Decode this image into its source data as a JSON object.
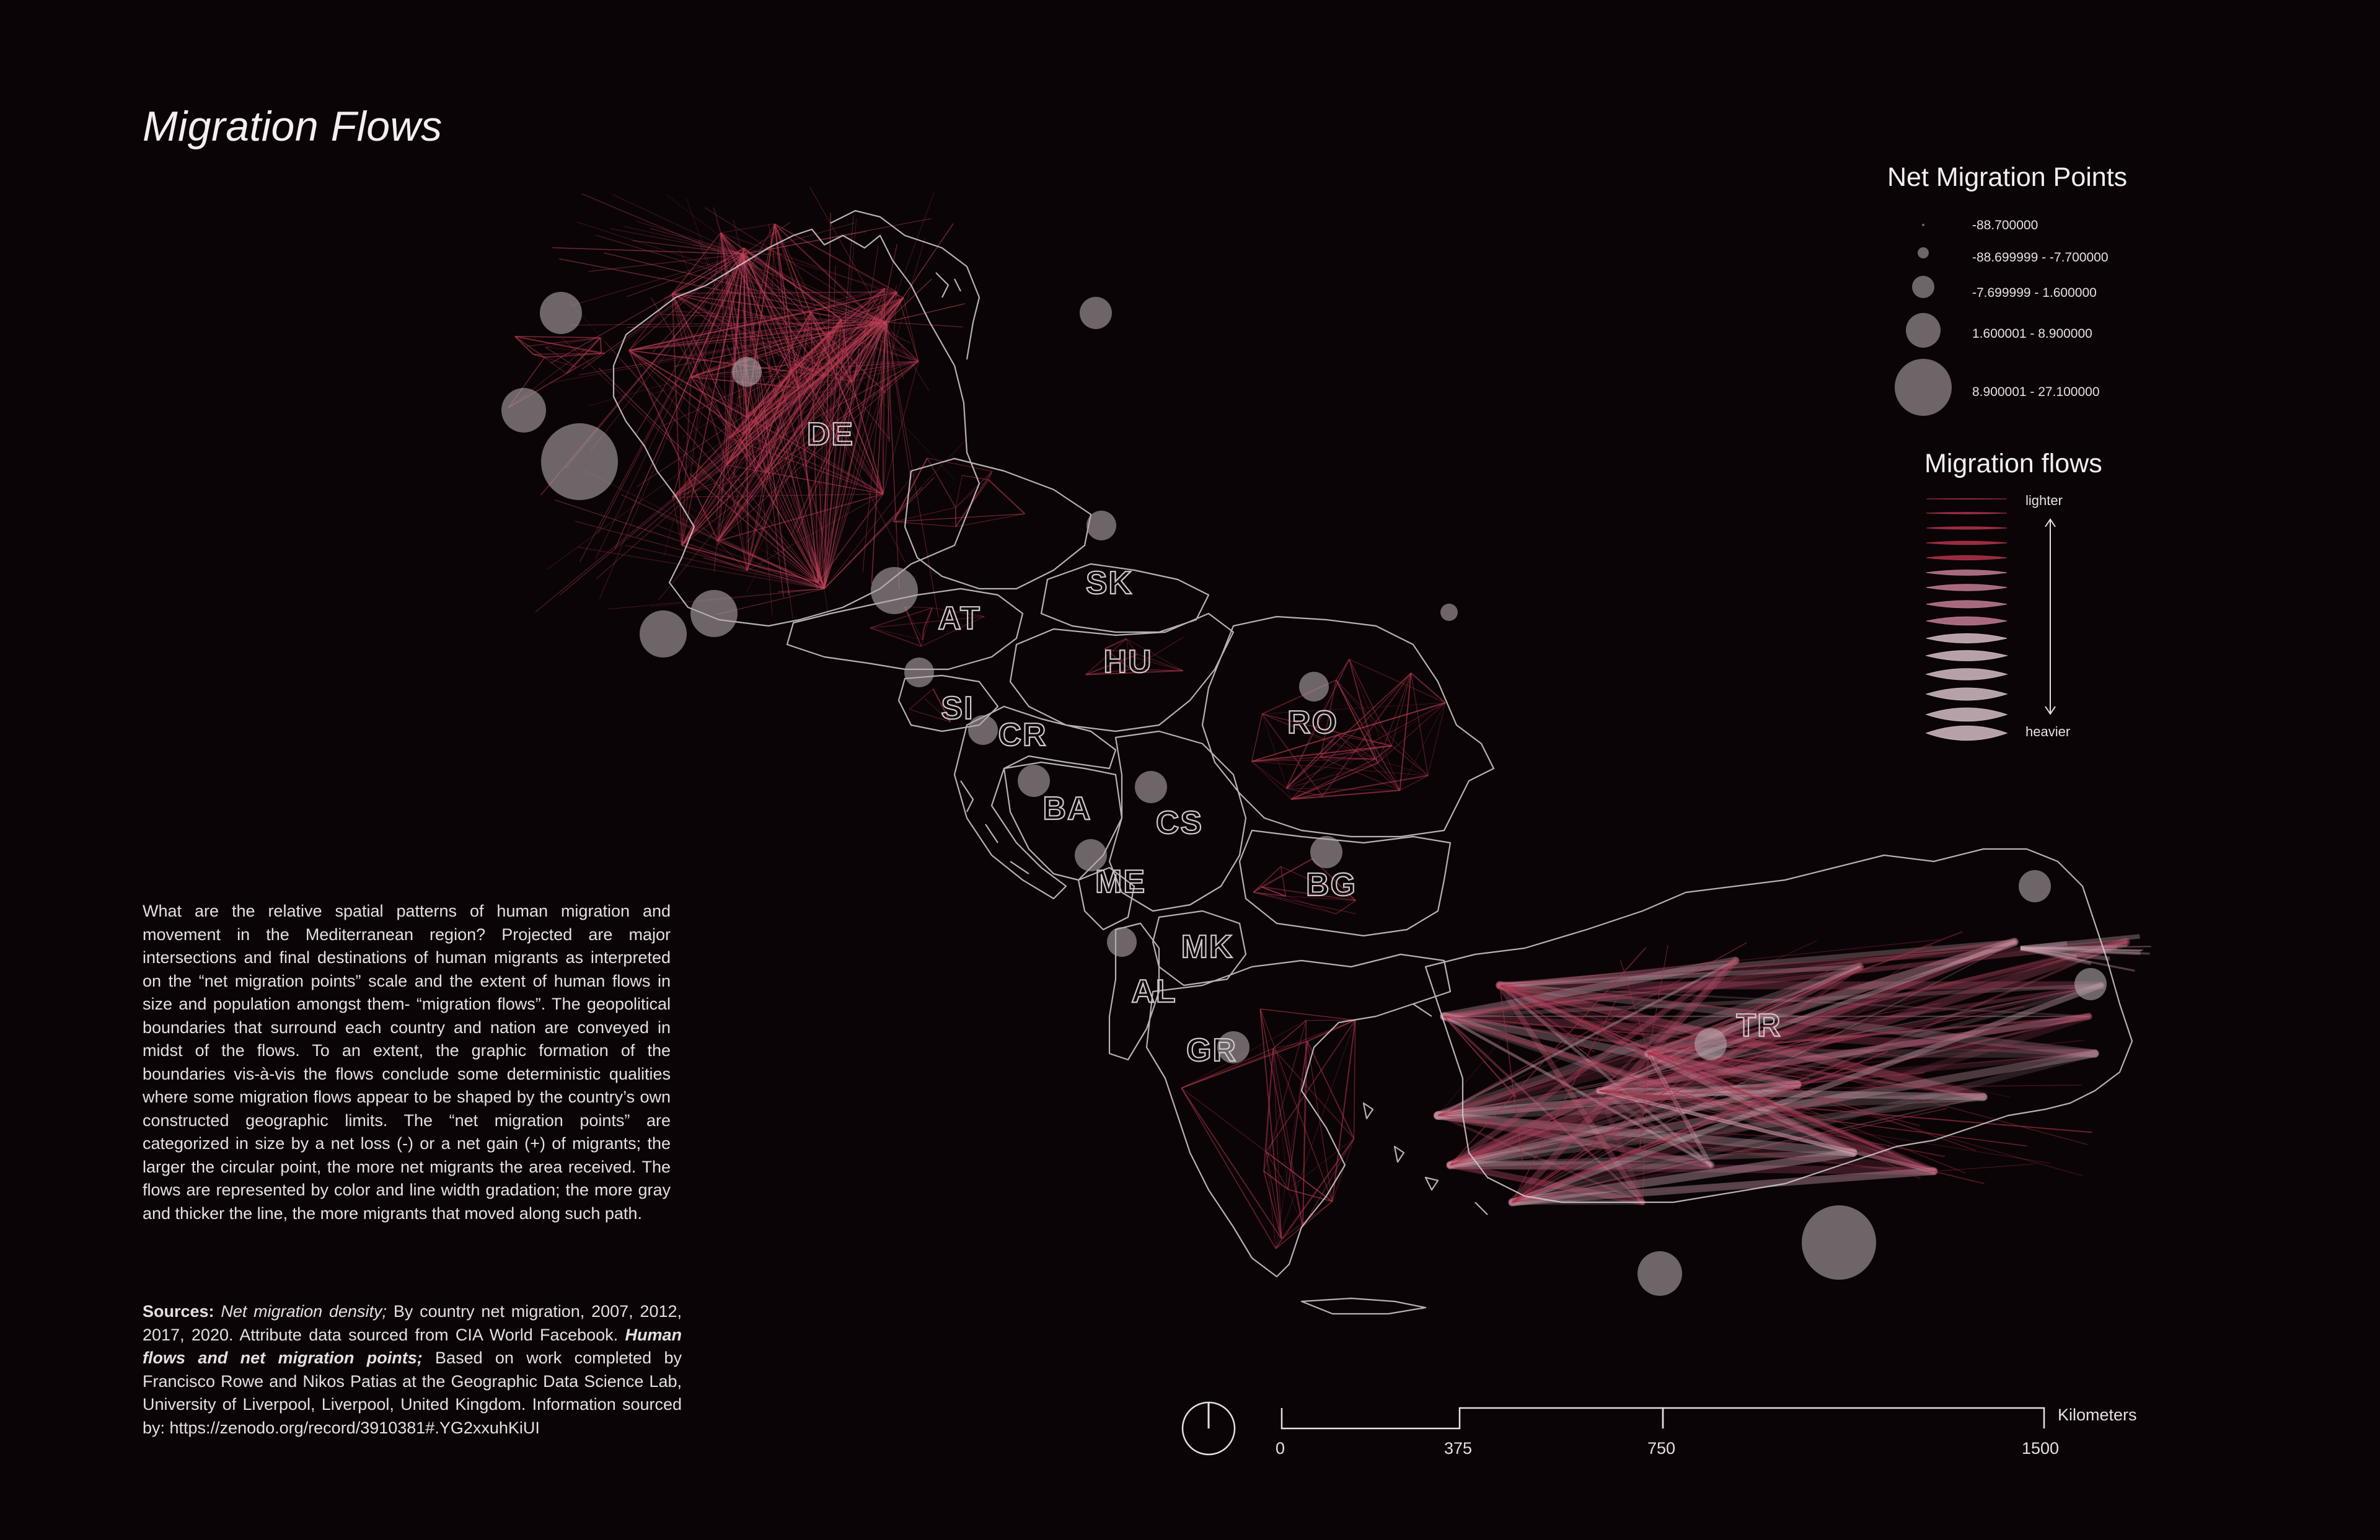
{
  "title": "Migration Flows",
  "description": "What are the relative spatial patterns of human migration and movement in the Mediterranean region? Projected are major intersections and final destinations of human migrants as interpreted on the “net migration points” scale and the extent of human flows in size and population amongst them- “migration flows”. The geopolitical boundaries that surround each country and nation are conveyed in midst of the flows. To an extent, the graphic formation of the boundaries vis-à-vis the flows conclude some deterministic qualities where some migration flows appear to be shaped by the country’s own constructed geographic limits. The “net migration points” are categorized in size by a net loss (-) or a net gain (+) of migrants; the larger the circular point, the more net migrants the area received. The flows are represented by color and line width gradation; the more gray and thicker the line, the more migrants that moved along such path.",
  "sources": {
    "label": "Sources:",
    "part1_italic": "Net migration density;",
    "part1_text": " By country net migration, 2007, 2012, 2017, 2020.  Attribute data sourced from CIA World Facebook. ",
    "part2_italic": "Human flows and net migration points;",
    "part2_text": " Based on work completed by Francisco Rowe and Nikos Patias at the Geographic Data Science Lab, University of Liverpool, Liverpool, United Kingdom. Information sourced by: https://zenodo.org/record/3910381#.YG2xxuhKiUI"
  },
  "legend_points": {
    "title": "Net Migration Points",
    "classes": [
      {
        "label": "-88.700000"
      },
      {
        "label": "-88.699999 - -7.700000"
      },
      {
        "label": "-7.699999 - 1.600000"
      },
      {
        "label": "1.600001 - 8.900000"
      },
      {
        "label": "8.900001 - 27.100000"
      }
    ]
  },
  "legend_flows": {
    "title": "Migration flows",
    "lighter": "lighter",
    "heavier": "heavier"
  },
  "scale_bar": {
    "unit": "Kilometers",
    "ticks": [
      "0",
      "375",
      "750",
      "1500"
    ]
  },
  "countries": [
    "DE",
    "AT",
    "SK",
    "HU",
    "SI",
    "CR",
    "RO",
    "BA",
    "CS",
    "BG",
    "ME",
    "MK",
    "AL",
    "GR",
    "TR"
  ],
  "colors": {
    "background": "#0b0406",
    "flow_light": "#b3384f",
    "flow_heavy": "#c7a2ae",
    "border": "#d6d0d2",
    "point": "#a59ba0"
  }
}
